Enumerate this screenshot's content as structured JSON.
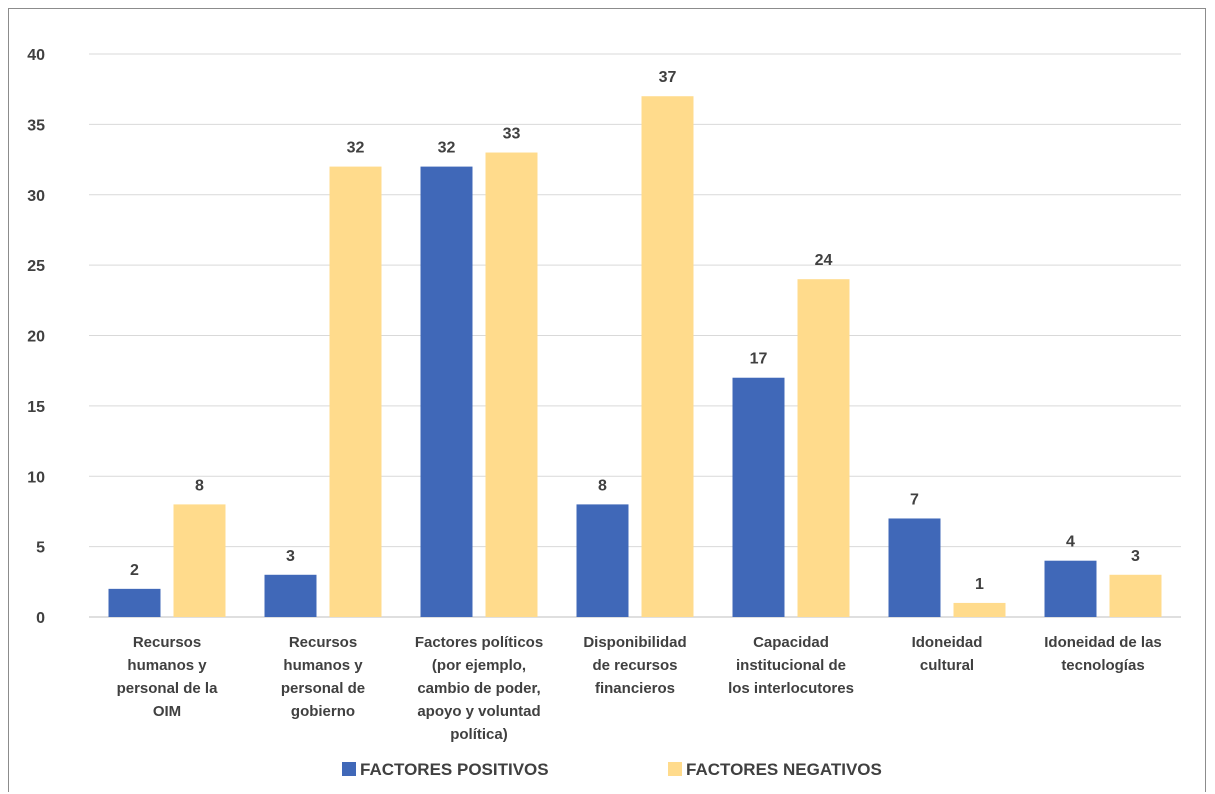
{
  "chart_data": {
    "type": "bar",
    "categories": [
      [
        "Recursos",
        "humanos y",
        "personal de la",
        "OIM"
      ],
      [
        "Recursos",
        "humanos y",
        "personal de",
        "gobierno"
      ],
      [
        "Factores políticos",
        "(por ejemplo,",
        "cambio de poder,",
        "apoyo y voluntad",
        "política)"
      ],
      [
        "Disponibilidad",
        "de recursos",
        "financieros"
      ],
      [
        "Capacidad",
        "institucional de",
        "los interlocutores"
      ],
      [
        "Idoneidad",
        "cultural"
      ],
      [
        "Idoneidad de las",
        "tecnologías"
      ]
    ],
    "series": [
      {
        "name": "FACTORES POSITIVOS",
        "color": "#4068b8",
        "values": [
          2,
          3,
          32,
          8,
          17,
          7,
          4
        ]
      },
      {
        "name": "FACTORES NEGATIVOS",
        "color": "#ffdb8c",
        "values": [
          8,
          32,
          33,
          37,
          24,
          1,
          3
        ]
      }
    ],
    "yticks": [
      "0",
      "5",
      "10",
      "15",
      "20",
      "25",
      "30",
      "35",
      "40"
    ],
    "ylim": [
      0,
      40
    ],
    "grid": true,
    "legend_position": "bottom",
    "data_labels": true
  }
}
